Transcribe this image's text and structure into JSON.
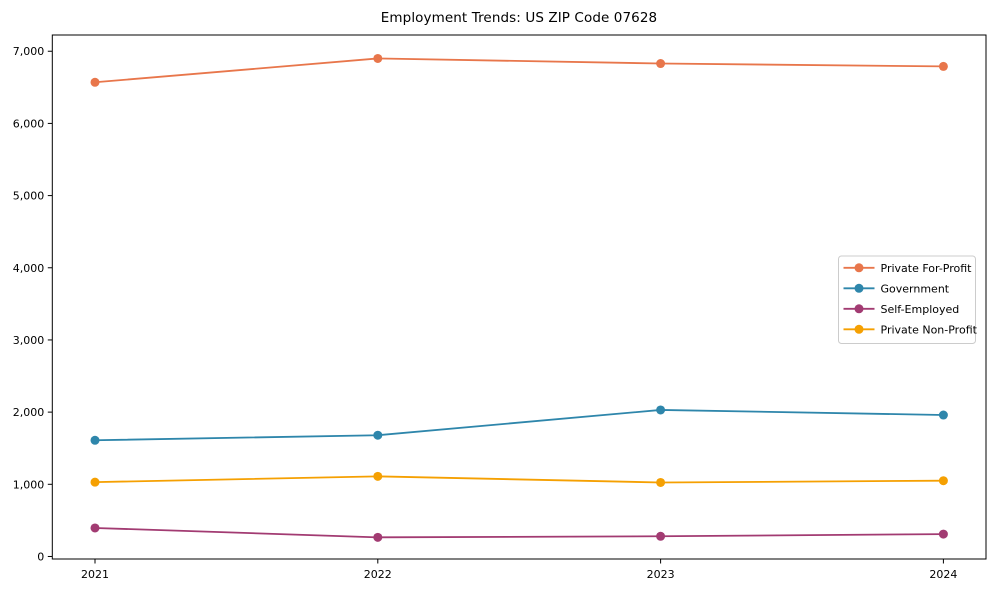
{
  "chart_data": {
    "type": "line",
    "title": "Employment Trends: US ZIP Code 07628",
    "xlabel": "",
    "ylabel": "",
    "x": [
      2021,
      2022,
      2023,
      2024
    ],
    "x_tick_labels": [
      "2021",
      "2022",
      "2023",
      "2024"
    ],
    "yticks": [
      0,
      1000,
      2000,
      3000,
      4000,
      5000,
      6000,
      7000
    ],
    "ytick_labels": [
      "0",
      "1,000",
      "2,000",
      "3,000",
      "4,000",
      "5,000",
      "6,000",
      "7,000"
    ],
    "ylim": [
      -35,
      7225
    ],
    "grid": false,
    "marker": "circle",
    "legend_position": "center-right",
    "series": [
      {
        "name": "Private For-Profit",
        "color": "#E8764B",
        "values": [
          6570,
          6900,
          6830,
          6790
        ]
      },
      {
        "name": "Government",
        "color": "#2E86AB",
        "values": [
          1610,
          1680,
          2030,
          1960
        ]
      },
      {
        "name": "Self-Employed",
        "color": "#A23B72",
        "values": [
          395,
          265,
          280,
          310
        ]
      },
      {
        "name": "Private Non-Profit",
        "color": "#F5A002",
        "values": [
          1030,
          1110,
          1025,
          1050
        ]
      }
    ],
    "axis_color": "#000000",
    "text_color": "#000000",
    "legend_border_color": "#cccccc",
    "legend_background": "#ffffff"
  }
}
